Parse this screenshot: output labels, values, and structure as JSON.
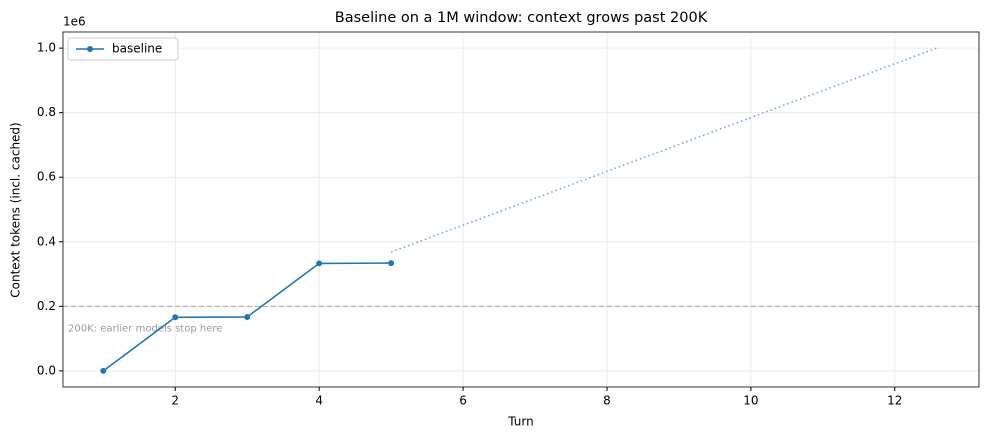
{
  "chart_data": {
    "type": "line",
    "title": "Baseline on a 1M window: context grows past 200K",
    "x_label": "Turn",
    "y_label": "Context tokens (incl. cached)",
    "y_offset_label": "1e6",
    "xlim": [
      0.44,
      13.17
    ],
    "ylim": [
      -0.05,
      1.05
    ],
    "xticks": [
      2,
      4,
      6,
      8,
      10,
      12
    ],
    "yticks": [
      {
        "value": 0,
        "label": "0.0"
      },
      0.2,
      0.4,
      0.6,
      0.8,
      {
        "value": 1,
        "label": "1.0"
      }
    ],
    "grid": true,
    "legend": "upper left",
    "series": [
      {
        "name": "baseline",
        "color": "#1f77b4",
        "markers": true,
        "dash": "solid",
        "x": [
          1,
          2,
          3,
          4,
          5
        ],
        "values": [
          0.0,
          0.166,
          0.167,
          0.333,
          0.334
        ]
      },
      {
        "color": "#6fa8dc",
        "markers": false,
        "dash": "dotted",
        "x": [
          5,
          12.58
        ],
        "values": [
          0.368,
          1.0
        ]
      }
    ],
    "hlines": [
      {
        "value": 0.2,
        "color": "#aaaaaa",
        "label": "200K: earlier models stop here"
      }
    ]
  }
}
